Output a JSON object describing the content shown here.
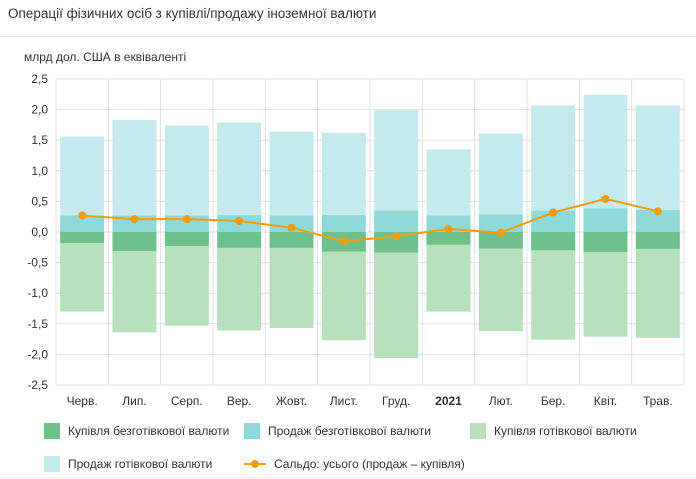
{
  "title": "Операції фізичних осіб з купівлі/продажу іноземної валюти",
  "colors": {
    "buy_noncash": "#6fc08a",
    "sell_noncash": "#8fd9d9",
    "buy_cash": "#b7e0bd",
    "sell_cash": "#c4eaee",
    "balance": "#f29c12",
    "grid": "#e2e2e2"
  },
  "chart_data": {
    "type": "bar",
    "unit_label": "млрд дол. США в еквіваленті",
    "categories": [
      "Черв.",
      "Лип.",
      "Серп.",
      "Вер.",
      "Жовт.",
      "Лист.",
      "Груд.",
      "2021",
      "Лют.",
      "Бер.",
      "Квіт.",
      "Трав."
    ],
    "bold_categories": [
      "2021"
    ],
    "ylim": [
      -2.5,
      2.5
    ],
    "yticks": [
      "2,5",
      "2,0",
      "1,5",
      "1,0",
      "0,5",
      "0,0",
      "-0,5",
      "-1,0",
      "-1,5",
      "-2,0",
      "-2,5"
    ],
    "ytick_values": [
      2.5,
      2.0,
      1.5,
      1.0,
      0.5,
      0.0,
      -0.5,
      -1.0,
      -1.5,
      -2.0,
      -2.5
    ],
    "grid": true,
    "legend_position": "bottom",
    "series": [
      {
        "name": "Купівля безготівкової валюти",
        "kind": "bar",
        "values": [
          -0.18,
          -0.31,
          -0.23,
          -0.26,
          -0.26,
          -0.32,
          -0.34,
          -0.21,
          -0.27,
          -0.3,
          -0.33,
          -0.28
        ]
      },
      {
        "name": "Продаж безготівкової валюти",
        "kind": "bar",
        "values": [
          0.27,
          0.27,
          0.27,
          0.28,
          0.27,
          0.28,
          0.35,
          0.27,
          0.29,
          0.35,
          0.39,
          0.36
        ]
      },
      {
        "name": "Купівля готівкової валюти",
        "kind": "bar",
        "values": [
          -1.12,
          -1.33,
          -1.3,
          -1.35,
          -1.31,
          -1.45,
          -1.72,
          -1.09,
          -1.35,
          -1.46,
          -1.38,
          -1.45
        ]
      },
      {
        "name": "Продаж готівкової валюти",
        "kind": "bar",
        "values": [
          1.29,
          1.56,
          1.47,
          1.51,
          1.37,
          1.34,
          1.64,
          1.08,
          1.32,
          1.72,
          1.85,
          1.71
        ]
      },
      {
        "name": "Сальдо: усього (продаж – купівля)",
        "kind": "line",
        "values": [
          0.27,
          0.21,
          0.21,
          0.18,
          0.07,
          -0.15,
          -0.07,
          0.05,
          -0.01,
          0.32,
          0.54,
          0.34
        ]
      }
    ]
  }
}
